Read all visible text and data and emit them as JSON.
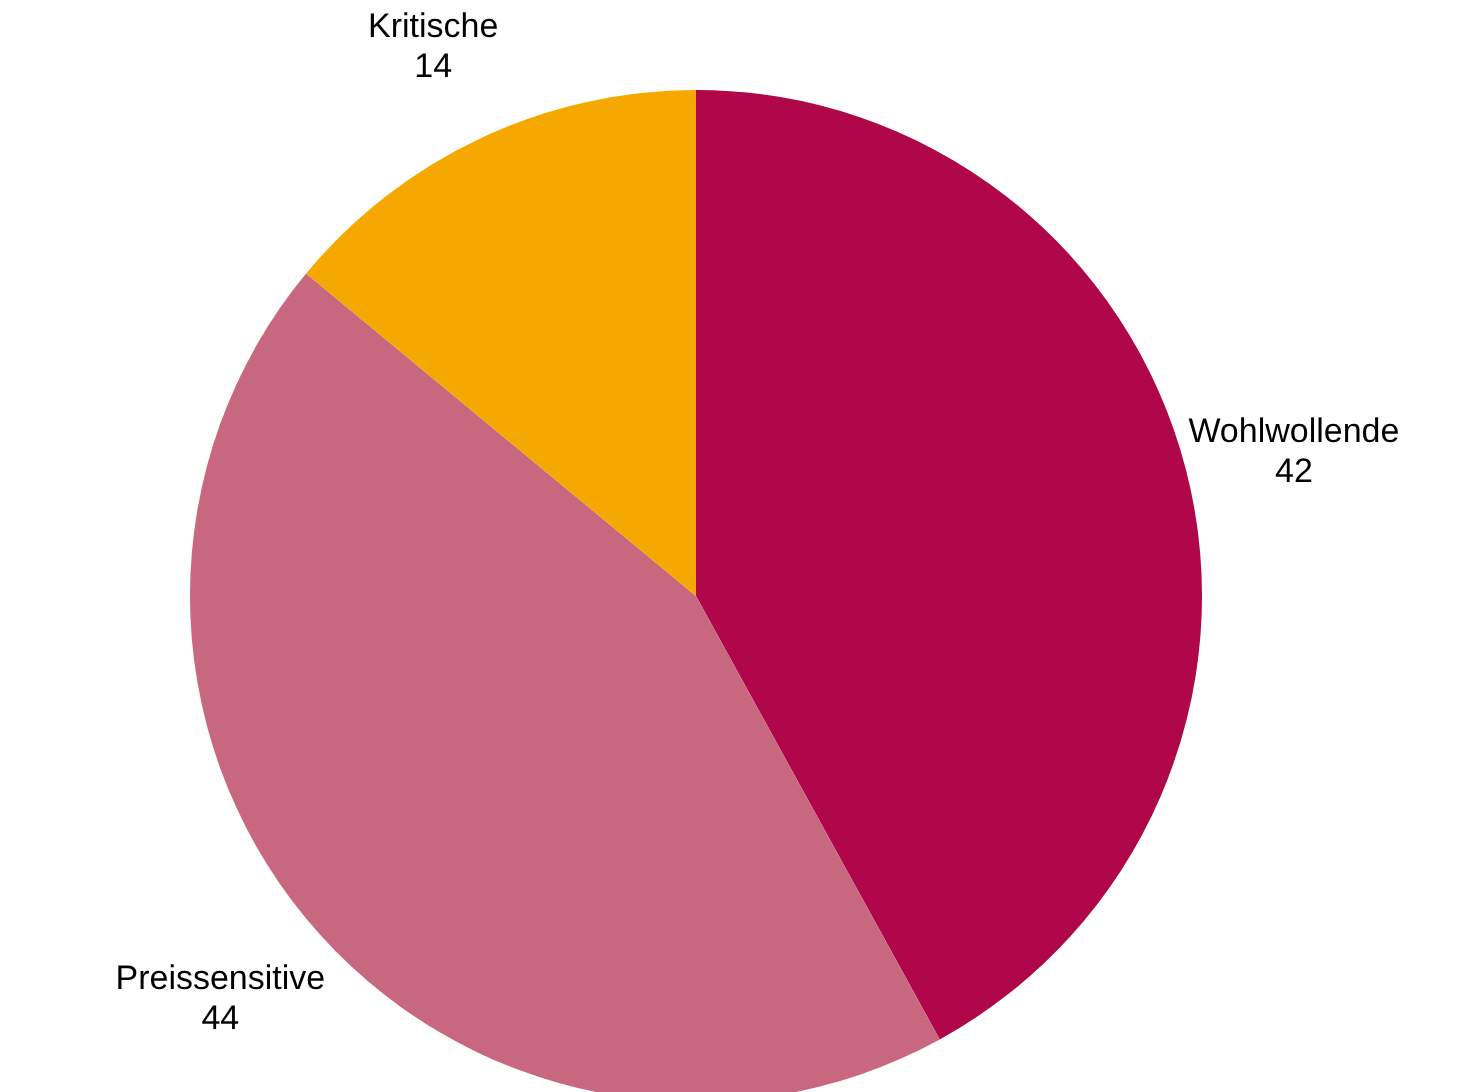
{
  "chart_data": {
    "type": "pie",
    "categories": [
      "Wohlwollende",
      "Preissensitive",
      "Kritische"
    ],
    "values": [
      42,
      44,
      14
    ],
    "colors": [
      "#b0064a",
      "#c8687e",
      "#f5a800"
    ],
    "data_labels": true
  }
}
